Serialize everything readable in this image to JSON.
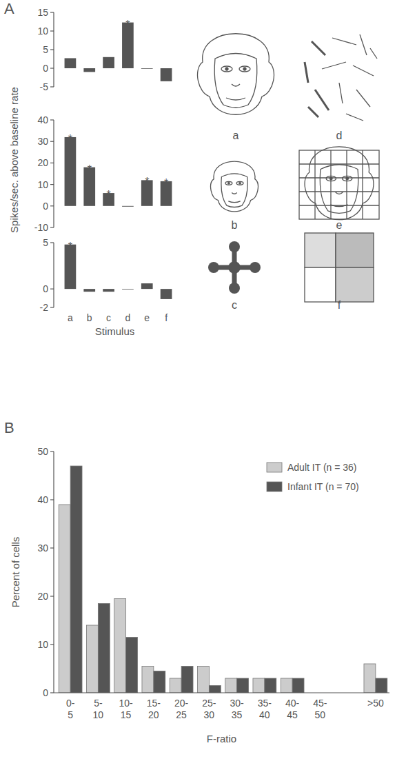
{
  "chart_data": [
    {
      "type": "bar",
      "panel": "A",
      "categories": [
        "a",
        "b",
        "c",
        "d",
        "e",
        "f"
      ],
      "values": [
        2.7,
        -1,
        3,
        12.3,
        -0.1,
        -3.5
      ],
      "color": "#555555",
      "ylim": [
        -5,
        15
      ],
      "yticks": [
        -5,
        0,
        5,
        10,
        15
      ],
      "tick_labels": "y",
      "grid": false,
      "annotations": [
        {
          "text": "*",
          "index": 3
        }
      ]
    },
    {
      "type": "bar",
      "y_label": "Spikes/sec. above baseline rate",
      "categories": [
        "a",
        "b",
        "c",
        "d",
        "e",
        "f"
      ],
      "values": [
        32,
        18,
        6,
        -0.3,
        12,
        11.5
      ],
      "color": "#555555",
      "ylim": [
        -10,
        40
      ],
      "yticks": [
        -10,
        0,
        10,
        20,
        30,
        40
      ],
      "tick_labels": "y",
      "grid": false,
      "annotations": [
        {
          "text": "*",
          "index": 0
        },
        {
          "text": "*",
          "index": 1
        },
        {
          "text": "*",
          "index": 2
        },
        {
          "text": "*",
          "index": 4
        },
        {
          "text": "*",
          "index": 5
        }
      ]
    },
    {
      "type": "bar",
      "x_label": "Stimulus",
      "categories": [
        "a",
        "b",
        "c",
        "d",
        "e",
        "f"
      ],
      "values": [
        4.8,
        -0.3,
        -0.3,
        0,
        0.6,
        -1.1
      ],
      "color": "#555555",
      "ylim": [
        -2,
        5
      ],
      "yticks": [
        -2,
        0,
        5
      ],
      "grid": false,
      "annotations": [
        {
          "text": "*",
          "index": 0
        }
      ]
    },
    {
      "type": "bar",
      "panel": "B",
      "x_label": "F-ratio",
      "y_label": "Percent of cells",
      "categories": [
        "0-5",
        "5-10",
        "10-15",
        "15-20",
        "20-25",
        "25-30",
        "30-35",
        "35-40",
        "40-45",
        "45-50",
        null,
        ">50"
      ],
      "series": [
        {
          "name": "Adult IT (n = 36)",
          "color": "#cccccc",
          "values": [
            39,
            14,
            19.5,
            5.5,
            3,
            5.5,
            3,
            3,
            3,
            0,
            null,
            6
          ]
        },
        {
          "name": "Infant IT (n = 70)",
          "color": "#555555",
          "values": [
            47,
            18.5,
            11.5,
            4.5,
            5.5,
            1.5,
            3,
            3,
            3,
            0,
            null,
            3
          ]
        }
      ],
      "ylim": [
        0,
        50
      ],
      "yticks": [
        0,
        10,
        20,
        30,
        40,
        50
      ],
      "grid": false,
      "legend": "top-right"
    }
  ]
}
